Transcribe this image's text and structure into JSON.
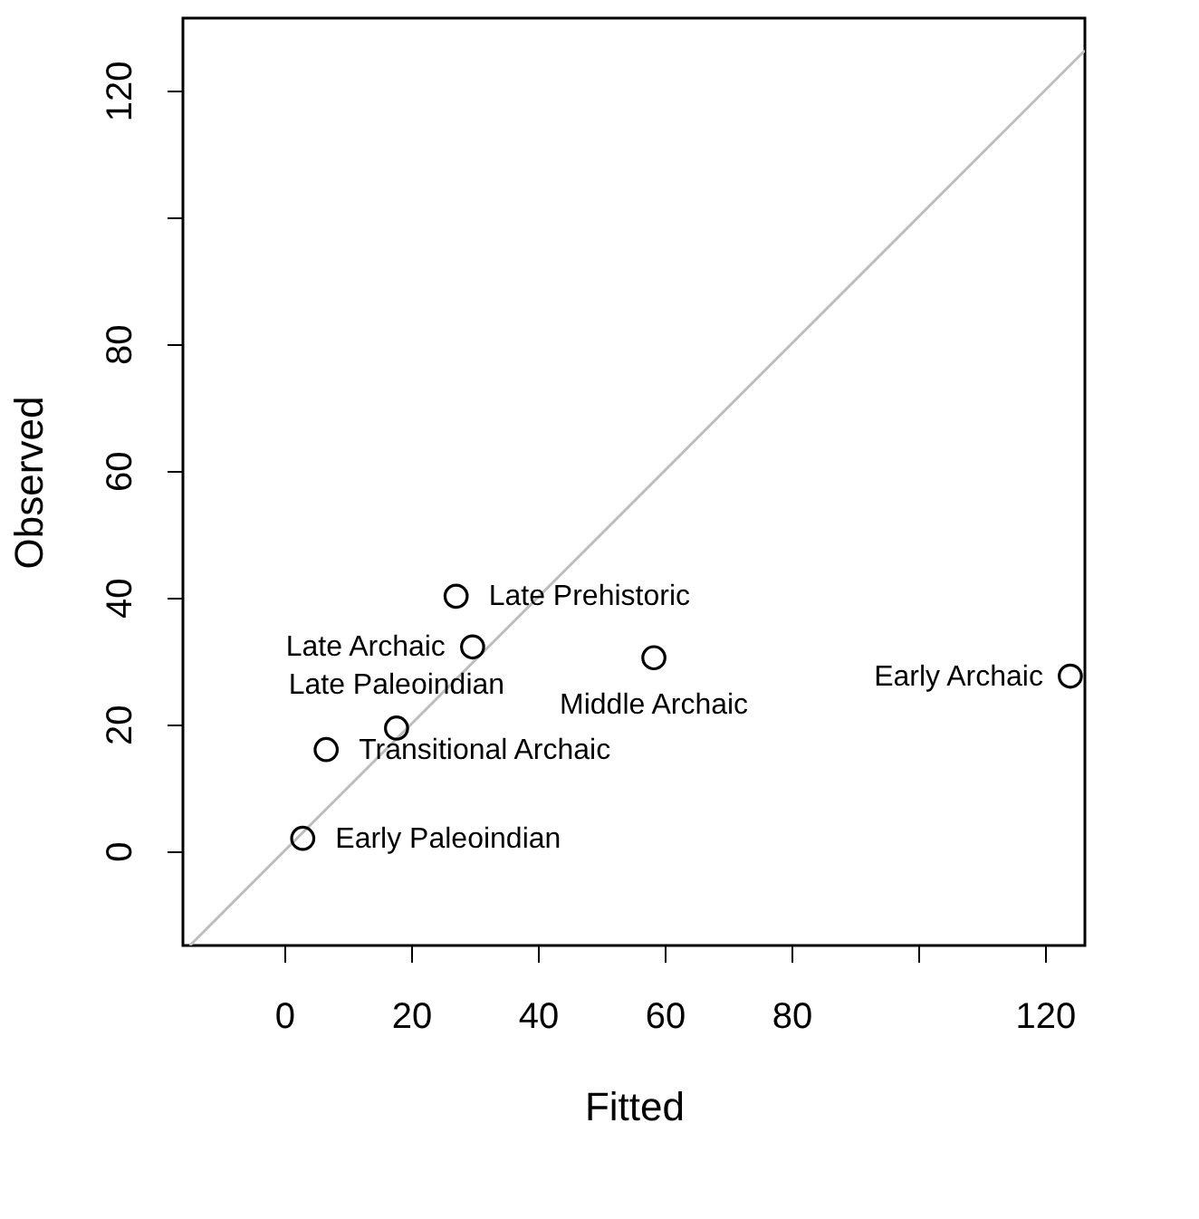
{
  "chart_data": {
    "type": "scatter",
    "xlabel": "Fitted",
    "ylabel": "Observed",
    "x": [
      2.9,
      6.6,
      17.7,
      29.7,
      27.1,
      58.3,
      124
    ],
    "series": [
      {
        "color": "#000000",
        "marker": "circle",
        "values": [
          2.0,
          16.0,
          19.4,
          32.2,
          40.2,
          30.5,
          27.6
        ]
      },
      {
        "type": "line",
        "color": "#bebebe",
        "x": [
          -14.9,
          126.3
        ],
        "values": [
          -14.9,
          126.3
        ]
      }
    ],
    "annotations": [
      {
        "text": "Early Paleoindian",
        "x": 2.9,
        "y": 2.0
      },
      {
        "text": "Transitional Archaic",
        "x": 6.6,
        "y": 16.0
      },
      {
        "text": "Late Paleoindian",
        "x": 17.7,
        "y": 19.4
      },
      {
        "text": "Late Archaic",
        "x": 29.7,
        "y": 32.2
      },
      {
        "text": "Late Prehistoric",
        "x": 27.1,
        "y": 40.2
      },
      {
        "text": "Middle Archaic",
        "x": 58.3,
        "y": 30.5
      },
      {
        "text": "Early Archaic",
        "x": 124,
        "y": 27.6
      }
    ],
    "xlim": [
      -16,
      126.3
    ],
    "ylim": [
      -14.9,
      131.4
    ],
    "xticks": [
      0,
      20,
      40,
      60,
      80,
      {
        "value": 100,
        "label": null
      },
      120
    ],
    "yticks": [
      0,
      20,
      40,
      60,
      80,
      {
        "value": 100,
        "label": null
      },
      120
    ],
    "grid": false
  }
}
